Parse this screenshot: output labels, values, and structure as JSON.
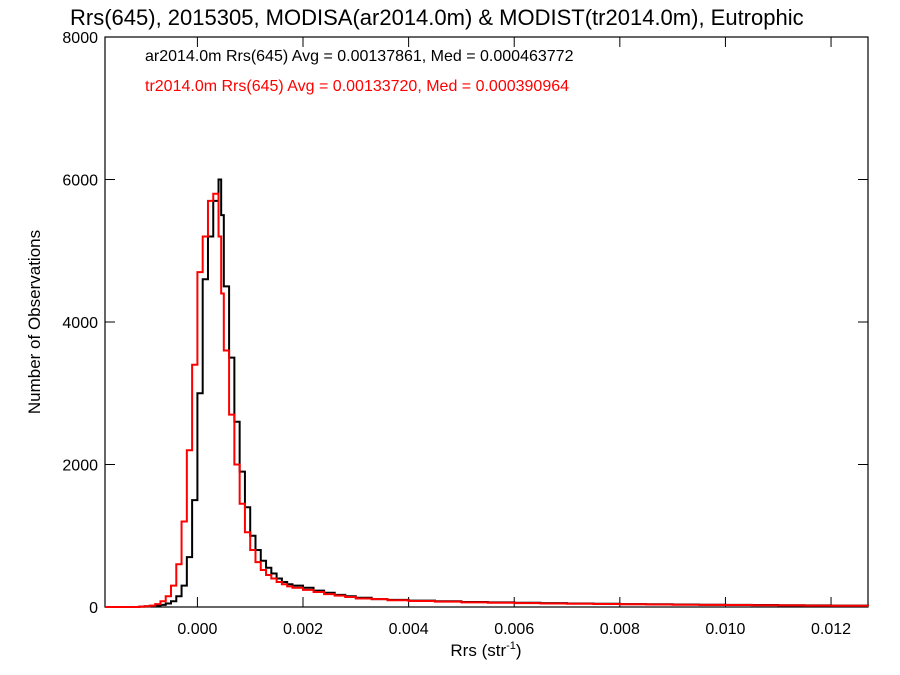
{
  "chart_data": {
    "type": "histogram",
    "title": "Rrs(645), 2015305, MODISA(ar2014.0m) & MODIST(tr2014.0m), Eutrophic",
    "xlabel": "Rrs (str",
    "xlabel_sup": "-1",
    "xlabel_tail": ")",
    "ylabel": "Number of Observations",
    "xlim": [
      -0.00175,
      0.0127
    ],
    "ylim": [
      0,
      8000
    ],
    "xticks": [
      0.0,
      0.002,
      0.004,
      0.006,
      0.008,
      0.01,
      0.012
    ],
    "xtick_labels": [
      "0.000",
      "0.002",
      "0.004",
      "0.006",
      "0.008",
      "0.010",
      "0.012"
    ],
    "yticks": [
      0,
      2000,
      4000,
      6000,
      8000
    ],
    "ytick_labels": [
      "0",
      "2000",
      "4000",
      "6000",
      "8000"
    ],
    "annotations": [
      {
        "text": "ar2014.0m Rrs(645) Avg = 0.00137861, Med = 0.000463772",
        "color": "#000000"
      },
      {
        "text": "tr2014.0m Rrs(645) Avg = 0.00133720, Med = 0.000390964",
        "color": "#ff0000"
      }
    ],
    "series": [
      {
        "name": "ar2014.0m",
        "color": "#000000",
        "x": [
          -0.00175,
          -0.0012,
          -0.0011,
          -0.001,
          -0.0009,
          -0.0008,
          -0.0007,
          -0.0006,
          -0.0005,
          -0.0004,
          -0.0003,
          -0.0002,
          -0.0001,
          0.0,
          0.0001,
          0.0002,
          0.0003,
          0.0004,
          0.00045,
          0.0005,
          0.0006,
          0.0007,
          0.0008,
          0.0009,
          0.001,
          0.0011,
          0.0012,
          0.0013,
          0.0014,
          0.0015,
          0.0016,
          0.0017,
          0.0018,
          0.002,
          0.0022,
          0.0024,
          0.0026,
          0.0028,
          0.003,
          0.0033,
          0.0036,
          0.004,
          0.0045,
          0.005,
          0.0055,
          0.006,
          0.0065,
          0.007,
          0.0075,
          0.008,
          0.0085,
          0.009,
          0.0095,
          0.01,
          0.0105,
          0.011,
          0.0115,
          0.012,
          0.0127
        ],
        "y": [
          0,
          0,
          5,
          10,
          15,
          20,
          30,
          50,
          80,
          150,
          300,
          700,
          1500,
          3000,
          4600,
          5200,
          5700,
          6000,
          5500,
          4500,
          3500,
          2600,
          1900,
          1400,
          1000,
          800,
          650,
          550,
          470,
          400,
          350,
          320,
          300,
          270,
          230,
          200,
          170,
          150,
          130,
          110,
          100,
          90,
          80,
          70,
          65,
          60,
          55,
          50,
          45,
          40,
          38,
          35,
          32,
          30,
          28,
          25,
          22,
          20,
          18
        ]
      },
      {
        "name": "tr2014.0m",
        "color": "#ff0000",
        "x": [
          -0.00175,
          -0.0012,
          -0.0011,
          -0.001,
          -0.0009,
          -0.0008,
          -0.0007,
          -0.0006,
          -0.0005,
          -0.0004,
          -0.0003,
          -0.0002,
          -0.0001,
          0.0,
          0.0001,
          0.0002,
          0.0003,
          0.0004,
          0.00045,
          0.0005,
          0.0006,
          0.0007,
          0.0008,
          0.0009,
          0.001,
          0.0011,
          0.0012,
          0.0013,
          0.0014,
          0.0015,
          0.0016,
          0.0017,
          0.0018,
          0.002,
          0.0022,
          0.0024,
          0.0026,
          0.0028,
          0.003,
          0.0033,
          0.0036,
          0.004,
          0.0045,
          0.005,
          0.0055,
          0.006,
          0.0065,
          0.007,
          0.0075,
          0.008,
          0.0085,
          0.009,
          0.0095,
          0.01,
          0.0105,
          0.011,
          0.0115,
          0.012,
          0.0127
        ],
        "y": [
          0,
          0,
          5,
          10,
          20,
          40,
          80,
          150,
          300,
          600,
          1200,
          2200,
          3400,
          4700,
          5200,
          5700,
          5800,
          5200,
          4400,
          3600,
          2700,
          2000,
          1450,
          1050,
          800,
          630,
          520,
          450,
          400,
          350,
          320,
          290,
          270,
          240,
          210,
          180,
          160,
          140,
          120,
          110,
          95,
          85,
          75,
          65,
          60,
          55,
          50,
          45,
          42,
          38,
          35,
          32,
          30,
          28,
          25,
          22,
          20,
          18,
          15
        ]
      }
    ]
  }
}
